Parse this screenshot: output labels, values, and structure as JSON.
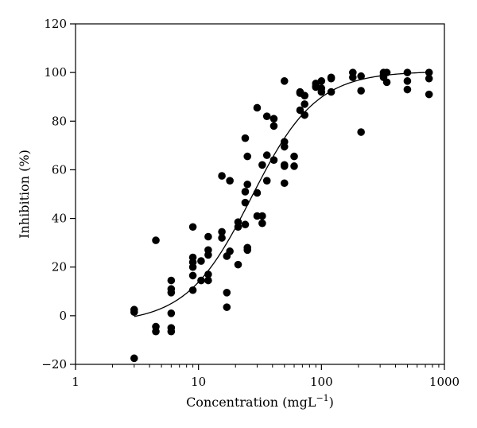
{
  "chart_data": {
    "type": "scatter",
    "xlabel": "Concentration (mgL",
    "xlabel_sup": "−1",
    "xlabel_close": ")",
    "ylabel": "Inhibition (%)",
    "x_scale": "log",
    "xlim": [
      1,
      1000
    ],
    "ylim": [
      -20,
      120
    ],
    "x_ticks": [
      {
        "value": 1,
        "label": "1"
      },
      {
        "value": 10,
        "label": "10"
      },
      {
        "value": 100,
        "label": "100"
      },
      {
        "value": 1000,
        "label": "1000"
      }
    ],
    "y_ticks": [
      {
        "value": -20,
        "label": "−20"
      },
      {
        "value": 0,
        "label": "0"
      },
      {
        "value": 20,
        "label": "20"
      },
      {
        "value": 40,
        "label": "40"
      },
      {
        "value": 60,
        "label": "60"
      },
      {
        "value": 80,
        "label": "80"
      },
      {
        "value": 100,
        "label": "100"
      },
      {
        "value": 120,
        "label": "120"
      }
    ],
    "grid": false,
    "legend": "none",
    "marker_color": "#000000",
    "points": [
      [
        3,
        2.5
      ],
      [
        3,
        1.5
      ],
      [
        3,
        -17.5
      ],
      [
        4.5,
        31
      ],
      [
        4.5,
        -4.5
      ],
      [
        4.5,
        -6.5
      ],
      [
        6,
        14.5
      ],
      [
        6,
        11
      ],
      [
        6,
        9.5
      ],
      [
        6,
        1
      ],
      [
        6,
        -5
      ],
      [
        6,
        -6.5
      ],
      [
        9,
        36.5
      ],
      [
        9,
        24
      ],
      [
        9,
        22
      ],
      [
        9,
        20
      ],
      [
        9,
        16.5
      ],
      [
        9,
        10.5
      ],
      [
        10.5,
        22.5
      ],
      [
        10.5,
        14.5
      ],
      [
        12,
        32.5
      ],
      [
        12,
        27
      ],
      [
        12,
        25
      ],
      [
        12,
        17
      ],
      [
        12,
        14.5
      ],
      [
        15.5,
        57.5
      ],
      [
        15.5,
        34.5
      ],
      [
        15.5,
        32
      ],
      [
        17,
        24.5
      ],
      [
        17,
        9.5
      ],
      [
        17,
        3.5
      ],
      [
        18,
        55.5
      ],
      [
        18,
        26.5
      ],
      [
        21,
        38.5
      ],
      [
        21,
        36.5
      ],
      [
        21,
        21
      ],
      [
        24,
        73
      ],
      [
        24,
        51
      ],
      [
        24,
        46.5
      ],
      [
        24,
        37.5
      ],
      [
        25,
        65.5
      ],
      [
        25,
        54
      ],
      [
        25,
        28
      ],
      [
        25,
        27
      ],
      [
        30,
        85.5
      ],
      [
        30,
        50.5
      ],
      [
        30,
        41
      ],
      [
        33,
        62
      ],
      [
        33,
        41
      ],
      [
        33,
        38
      ],
      [
        36,
        82
      ],
      [
        36,
        66
      ],
      [
        36,
        55.5
      ],
      [
        41,
        81
      ],
      [
        41,
        78
      ],
      [
        41,
        64
      ],
      [
        50,
        96.5
      ],
      [
        50,
        71.5
      ],
      [
        50,
        69.5
      ],
      [
        50,
        62
      ],
      [
        50,
        61.5
      ],
      [
        50,
        54.5
      ],
      [
        60,
        65.5
      ],
      [
        60,
        61.5
      ],
      [
        67,
        92
      ],
      [
        67,
        91.5
      ],
      [
        67,
        84.5
      ],
      [
        73,
        90.5
      ],
      [
        73,
        87
      ],
      [
        73,
        82.5
      ],
      [
        90,
        95.5
      ],
      [
        90,
        94.5
      ],
      [
        90,
        94
      ],
      [
        100,
        96.5
      ],
      [
        100,
        93.5
      ],
      [
        100,
        92
      ],
      [
        120,
        98
      ],
      [
        120,
        97.5
      ],
      [
        120,
        92
      ],
      [
        180,
        100
      ],
      [
        180,
        98
      ],
      [
        210,
        98.5
      ],
      [
        210,
        92.5
      ],
      [
        210,
        75.5
      ],
      [
        320,
        100
      ],
      [
        320,
        99
      ],
      [
        320,
        98
      ],
      [
        340,
        100
      ],
      [
        340,
        96
      ],
      [
        500,
        100
      ],
      [
        500,
        96.5
      ],
      [
        500,
        93
      ],
      [
        750,
        100
      ],
      [
        750,
        97.5
      ],
      [
        750,
        91
      ]
    ],
    "fit_curve": {
      "model": "sigmoid",
      "ec50": 27,
      "hill": 1.65,
      "bottom": -3,
      "top": 100.5,
      "x_range": [
        3,
        750
      ]
    }
  }
}
